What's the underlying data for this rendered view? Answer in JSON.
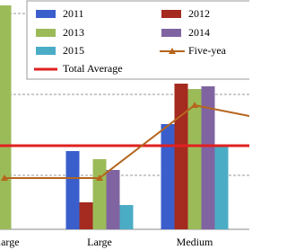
{
  "chart_data": {
    "type": "bar",
    "categories": [
      "a-large",
      "Large",
      "Medium"
    ],
    "series": [
      {
        "name": "2011",
        "color": "#3a5fcd",
        "values": [
          null,
          29,
          39
        ]
      },
      {
        "name": "2012",
        "color": "#a52a1f",
        "values": [
          null,
          10,
          54
        ]
      },
      {
        "name": "2013",
        "color": "#9bbb59",
        "values": [
          83,
          26,
          52
        ]
      },
      {
        "name": "2014",
        "color": "#8064a2",
        "values": [
          null,
          22,
          53
        ]
      },
      {
        "name": "2015",
        "color": "#4bacc6",
        "values": [
          null,
          9,
          31
        ]
      }
    ],
    "line_series": {
      "name": "Five-yea",
      "color": "#b5651d",
      "values": [
        19,
        19,
        46
      ]
    },
    "reference_line": {
      "name": "Total Average",
      "color": "#e02020",
      "value": 31
    },
    "ylim": [
      0,
      85
    ],
    "yticks": [
      20,
      50,
      80
    ],
    "grid": true
  }
}
